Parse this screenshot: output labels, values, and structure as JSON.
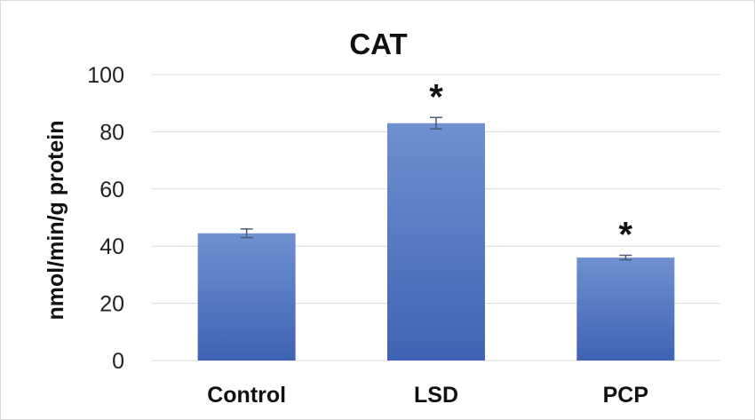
{
  "chart_data": {
    "type": "bar",
    "title": "CAT",
    "xlabel": "",
    "ylabel": "nmol/min/g protein",
    "categories": [
      "Control",
      "LSD",
      "PCP"
    ],
    "values": [
      44.5,
      83,
      36
    ],
    "error": [
      1.5,
      2,
      0.8
    ],
    "significance": [
      "",
      "*",
      "*"
    ],
    "ylim": [
      0,
      100
    ],
    "yticks": [
      0,
      20,
      40,
      60,
      80,
      100
    ],
    "ytick_labels": [
      "0",
      "20",
      "40",
      "60",
      "80",
      "100"
    ],
    "grid": true,
    "legend": "none",
    "colors": {
      "bar_top": "#6f90d0",
      "bar_bottom": "#3f63b4",
      "grid": "#d9d9d9",
      "error_bar": "#4a5b78"
    }
  }
}
